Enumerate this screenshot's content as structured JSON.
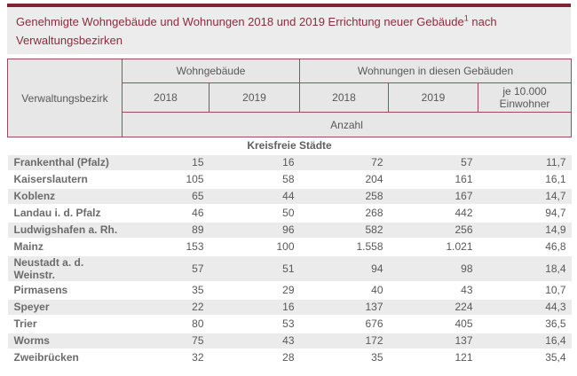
{
  "theme": {
    "accent-bar": "#7e2435",
    "title-color": "#8b2d3e",
    "table-border": "#9c4a5c",
    "header-bg": "#e7e7e7",
    "title-bg": "#ececec",
    "row-alt-bg": "#ebebeb",
    "text-color": "#585858",
    "name-color": "#6b6b6b"
  },
  "title": {
    "text_before_footnote": "Genehmigte Wohngebäude und Wohnungen 2018 und 2019 Errichtung neuer Gebäude",
    "footnote_marker": "1",
    "text_after_footnote": " nach Verwaltungsbezirken"
  },
  "table": {
    "header": {
      "region_label": "Verwaltungsbezirk",
      "group_buildings": "Wohngebäude",
      "group_dwellings": "Wohnungen in diesen Gebäuden",
      "buildings_year_2018": "2018",
      "buildings_year_2019": "2019",
      "dwellings_year_2018": "2018",
      "dwellings_year_2019": "2019",
      "per_capita_label": "je 10.000 Einwohner",
      "unit_label": "Anzahl"
    },
    "section_label": "Kreisfreie Städte",
    "rows": [
      {
        "name": "Frankenthal (Pfalz)",
        "values": [
          "15",
          "16",
          "72",
          "57",
          "11,7"
        ]
      },
      {
        "name": "Kaiserslautern",
        "values": [
          "105",
          "58",
          "204",
          "161",
          "16,1"
        ]
      },
      {
        "name": "Koblenz",
        "values": [
          "65",
          "44",
          "258",
          "167",
          "14,7"
        ]
      },
      {
        "name": "Landau i. d. Pfalz",
        "values": [
          "46",
          "50",
          "268",
          "442",
          "94,7"
        ]
      },
      {
        "name": "Ludwigshafen a. Rh.",
        "values": [
          "89",
          "96",
          "582",
          "256",
          "14,9"
        ]
      },
      {
        "name": "Mainz",
        "values": [
          "153",
          "100",
          "1.558",
          "1.021",
          "46,8"
        ]
      },
      {
        "name": "Neustadt a. d. Weinstr.",
        "values": [
          "57",
          "51",
          "94",
          "98",
          "18,4"
        ]
      },
      {
        "name": "Pirmasens",
        "values": [
          "35",
          "29",
          "40",
          "43",
          "10,7"
        ]
      },
      {
        "name": "Speyer",
        "values": [
          "22",
          "16",
          "137",
          "224",
          "44,3"
        ]
      },
      {
        "name": "Trier",
        "values": [
          "80",
          "53",
          "676",
          "405",
          "36,5"
        ]
      },
      {
        "name": "Worms",
        "values": [
          "75",
          "43",
          "172",
          "137",
          "16,4"
        ]
      },
      {
        "name": "Zweibrücken",
        "values": [
          "32",
          "28",
          "35",
          "121",
          "35,4"
        ]
      }
    ]
  },
  "chart_data": {
    "type": "table",
    "title": "Genehmigte Wohngebäude und Wohnungen 2018 und 2019 Errichtung neuer Gebäude nach Verwaltungsbezirken",
    "section": "Kreisfreie Städte",
    "columns": [
      "Verwaltungsbezirk",
      "Wohngebäude 2018",
      "Wohngebäude 2019",
      "Wohnungen 2018",
      "Wohnungen 2019",
      "Wohnungen 2019 je 10.000 Einwohner"
    ],
    "unit": "Anzahl",
    "rows": [
      [
        "Frankenthal (Pfalz)",
        15,
        16,
        72,
        57,
        11.7
      ],
      [
        "Kaiserslautern",
        105,
        58,
        204,
        161,
        16.1
      ],
      [
        "Koblenz",
        65,
        44,
        258,
        167,
        14.7
      ],
      [
        "Landau i. d. Pfalz",
        46,
        50,
        268,
        442,
        94.7
      ],
      [
        "Ludwigshafen a. Rh.",
        89,
        96,
        582,
        256,
        14.9
      ],
      [
        "Mainz",
        153,
        100,
        1558,
        1021,
        46.8
      ],
      [
        "Neustadt a. d. Weinstr.",
        57,
        51,
        94,
        98,
        18.4
      ],
      [
        "Pirmasens",
        35,
        29,
        40,
        43,
        10.7
      ],
      [
        "Speyer",
        22,
        16,
        137,
        224,
        44.3
      ],
      [
        "Trier",
        80,
        53,
        676,
        405,
        36.5
      ],
      [
        "Worms",
        75,
        43,
        172,
        137,
        16.4
      ],
      [
        "Zweibrücken",
        32,
        28,
        35,
        121,
        35.4
      ]
    ]
  }
}
